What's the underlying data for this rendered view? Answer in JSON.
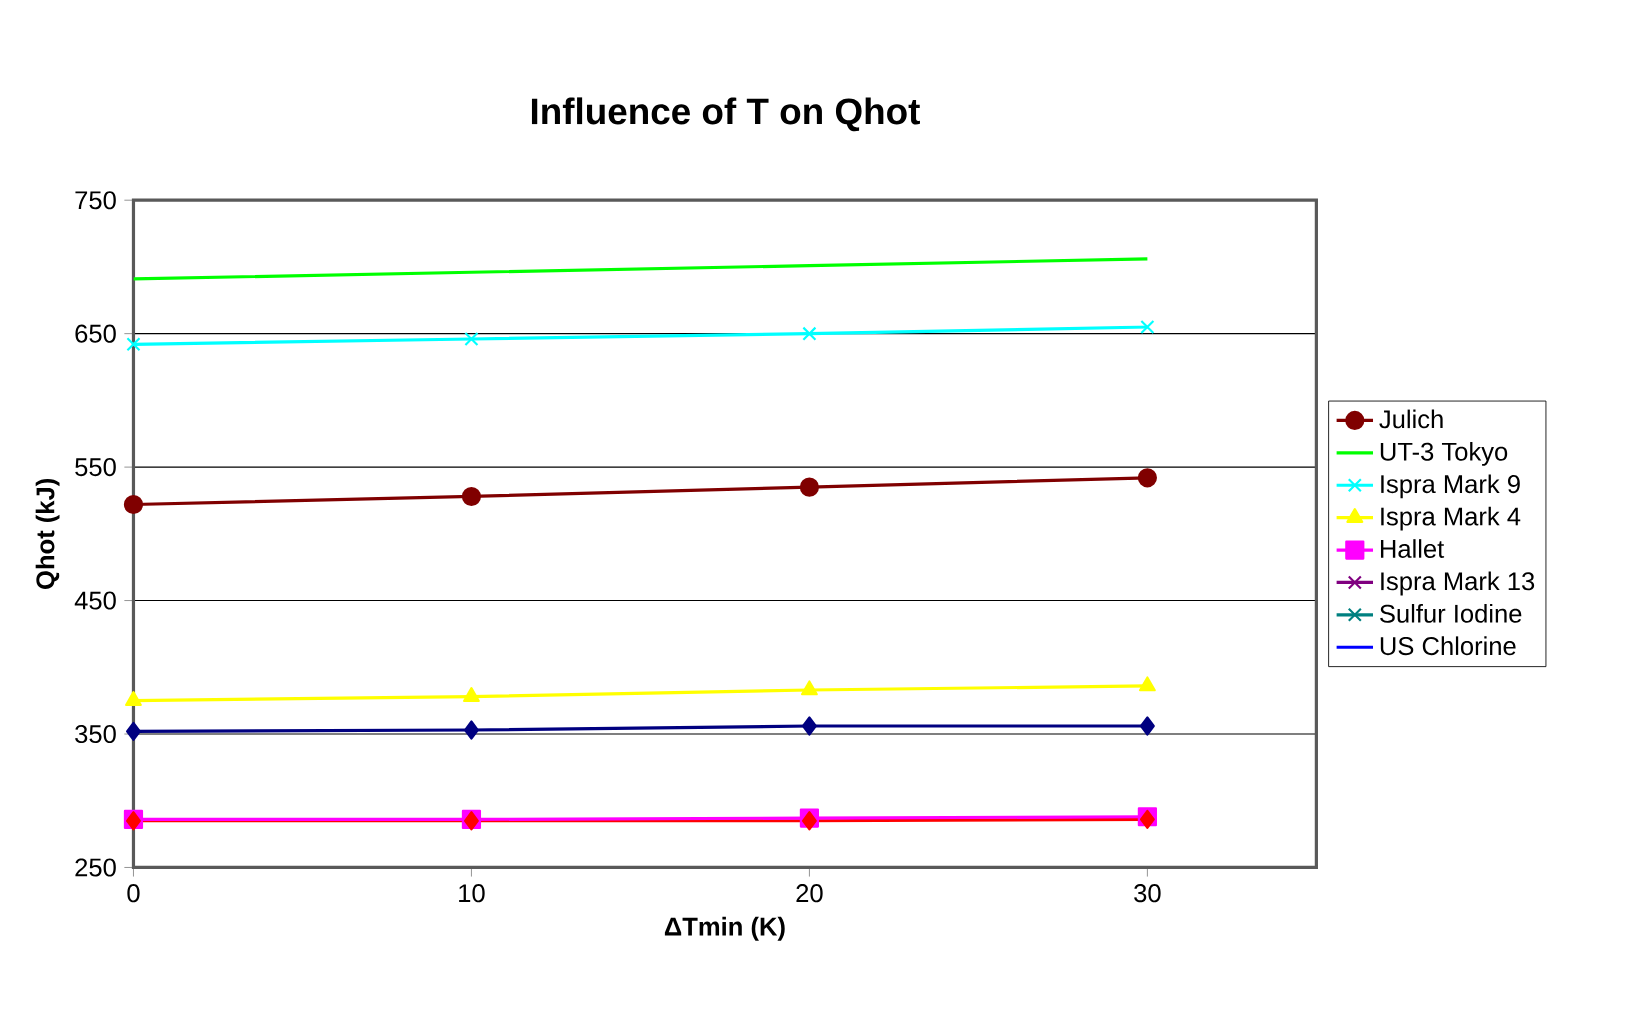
{
  "chart_data": {
    "type": "line",
    "title": "Influence of T  on Qhot",
    "xlabel": "ΔTmin (K)",
    "ylabel": "Qhot (kJ)",
    "x": [
      0,
      10,
      20,
      30
    ],
    "xlim": [
      0,
      35
    ],
    "xticks": [
      0,
      10,
      20,
      30
    ],
    "ylim": [
      250,
      750
    ],
    "yticks": [
      250,
      350,
      450,
      550,
      650,
      750
    ],
    "grid": "y",
    "legend": "right",
    "series": [
      {
        "name": "Julich",
        "color": "#800000",
        "marker": "circle",
        "values": [
          522,
          528,
          535,
          542
        ]
      },
      {
        "name": "UT-3 Tokyo",
        "color": "#00ff00",
        "marker": "none",
        "values": [
          691,
          696,
          701,
          706
        ]
      },
      {
        "name": "Ispra Mark 9",
        "color": "#00ffff",
        "marker": "cross",
        "values": [
          642,
          646,
          650,
          655
        ]
      },
      {
        "name": "Ispra Mark 4",
        "color": "#ffff00",
        "marker": "triangle",
        "values": [
          375,
          378,
          383,
          386
        ]
      },
      {
        "color": "#000080",
        "marker": "diamond",
        "values": [
          352,
          353,
          356,
          356
        ]
      },
      {
        "name": "Hallet",
        "color": "#ff00ff",
        "marker": "square",
        "values": [
          286,
          286,
          287,
          288
        ]
      },
      {
        "name": "Ispra Mark 13",
        "color": "#800080",
        "marker": "cross",
        "values": [
          null,
          null,
          null,
          null
        ]
      },
      {
        "name": "Sulfur Iodine",
        "color": "#008080",
        "marker": "cross",
        "values": [
          null,
          null,
          null,
          null
        ]
      },
      {
        "name": "US Chlorine",
        "color": "#0000ff",
        "marker": "none",
        "values": [
          null,
          null,
          null,
          null
        ]
      },
      {
        "color": "#ff0000",
        "marker": "diamond",
        "values": [
          285,
          285,
          285,
          286
        ]
      }
    ]
  }
}
